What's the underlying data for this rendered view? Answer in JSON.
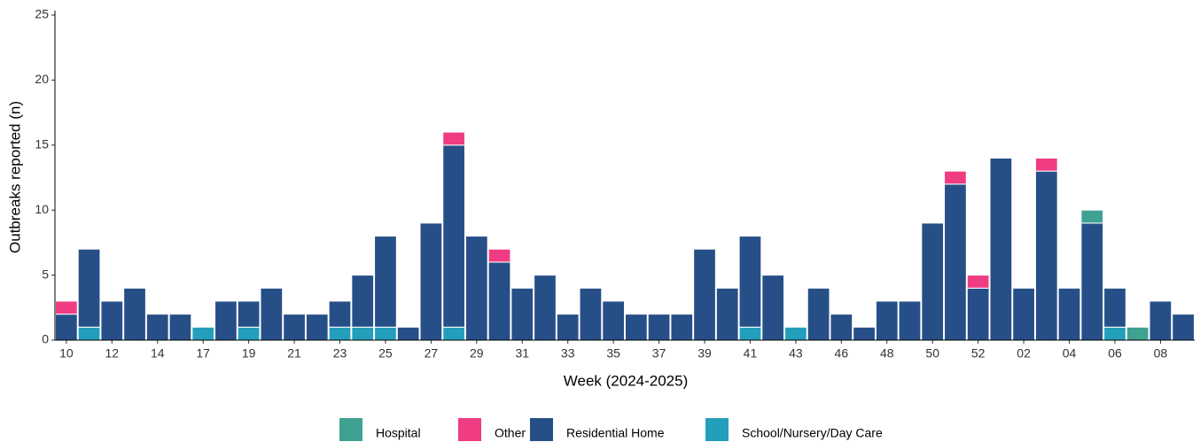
{
  "chart_data": {
    "type": "stacked_bar",
    "x_label": "Week (2024-2025)",
    "y_label": "Outbreaks reported (n)",
    "categories": [
      "10",
      null,
      "12",
      null,
      "14",
      null,
      "17",
      null,
      "19",
      null,
      "21",
      null,
      "23",
      null,
      "25",
      null,
      "27",
      null,
      "29",
      null,
      "31",
      null,
      "33",
      null,
      "35",
      null,
      "37",
      null,
      "39",
      null,
      "41",
      null,
      "43",
      null,
      "46",
      null,
      "48",
      null,
      "50",
      null,
      "52",
      null,
      "02",
      null,
      "04",
      null,
      "06",
      null,
      "08",
      null
    ],
    "series": [
      {
        "name": "Hospital",
        "color": "#3fa192",
        "values": [
          0,
          0,
          0,
          0,
          0,
          0,
          0,
          0,
          0,
          0,
          0,
          0,
          0,
          0,
          0,
          0,
          0,
          0,
          0,
          0,
          0,
          0,
          0,
          0,
          0,
          0,
          0,
          0,
          0,
          0,
          0,
          0,
          0,
          0,
          0,
          0,
          0,
          0,
          0,
          0,
          0,
          0,
          0,
          0,
          0,
          1,
          0,
          1,
          0,
          0
        ]
      },
      {
        "name": "Other",
        "color": "#f03c82",
        "values": [
          1,
          0,
          0,
          0,
          0,
          0,
          0,
          0,
          0,
          0,
          0,
          0,
          0,
          0,
          0,
          0,
          0,
          1,
          0,
          1,
          0,
          0,
          0,
          0,
          0,
          0,
          0,
          0,
          0,
          0,
          0,
          0,
          0,
          0,
          0,
          0,
          0,
          0,
          0,
          1,
          1,
          0,
          0,
          1,
          0,
          0,
          0,
          0,
          0,
          0
        ]
      },
      {
        "name": "Residential Home",
        "color": "#274f87",
        "values": [
          2,
          6,
          3,
          4,
          2,
          2,
          0,
          3,
          2,
          4,
          2,
          2,
          2,
          4,
          7,
          1,
          9,
          14,
          8,
          6,
          4,
          5,
          2,
          4,
          3,
          2,
          2,
          2,
          7,
          4,
          7,
          5,
          0,
          4,
          2,
          1,
          3,
          3,
          9,
          12,
          4,
          14,
          4,
          13,
          4,
          9,
          3,
          0,
          3,
          2
        ]
      },
      {
        "name": "School/Nursery/Day Care",
        "color": "#239fbb",
        "values": [
          0,
          1,
          0,
          0,
          0,
          0,
          1,
          0,
          1,
          0,
          0,
          0,
          1,
          1,
          1,
          0,
          0,
          1,
          0,
          0,
          0,
          0,
          0,
          0,
          0,
          0,
          0,
          0,
          0,
          0,
          1,
          0,
          1,
          0,
          0,
          0,
          0,
          0,
          0,
          0,
          0,
          0,
          0,
          0,
          0,
          0,
          1,
          0,
          0,
          0
        ]
      }
    ],
    "ylim": [
      0,
      25
    ],
    "yticks": [
      0,
      5,
      10,
      15,
      20,
      25
    ],
    "grid": false
  }
}
